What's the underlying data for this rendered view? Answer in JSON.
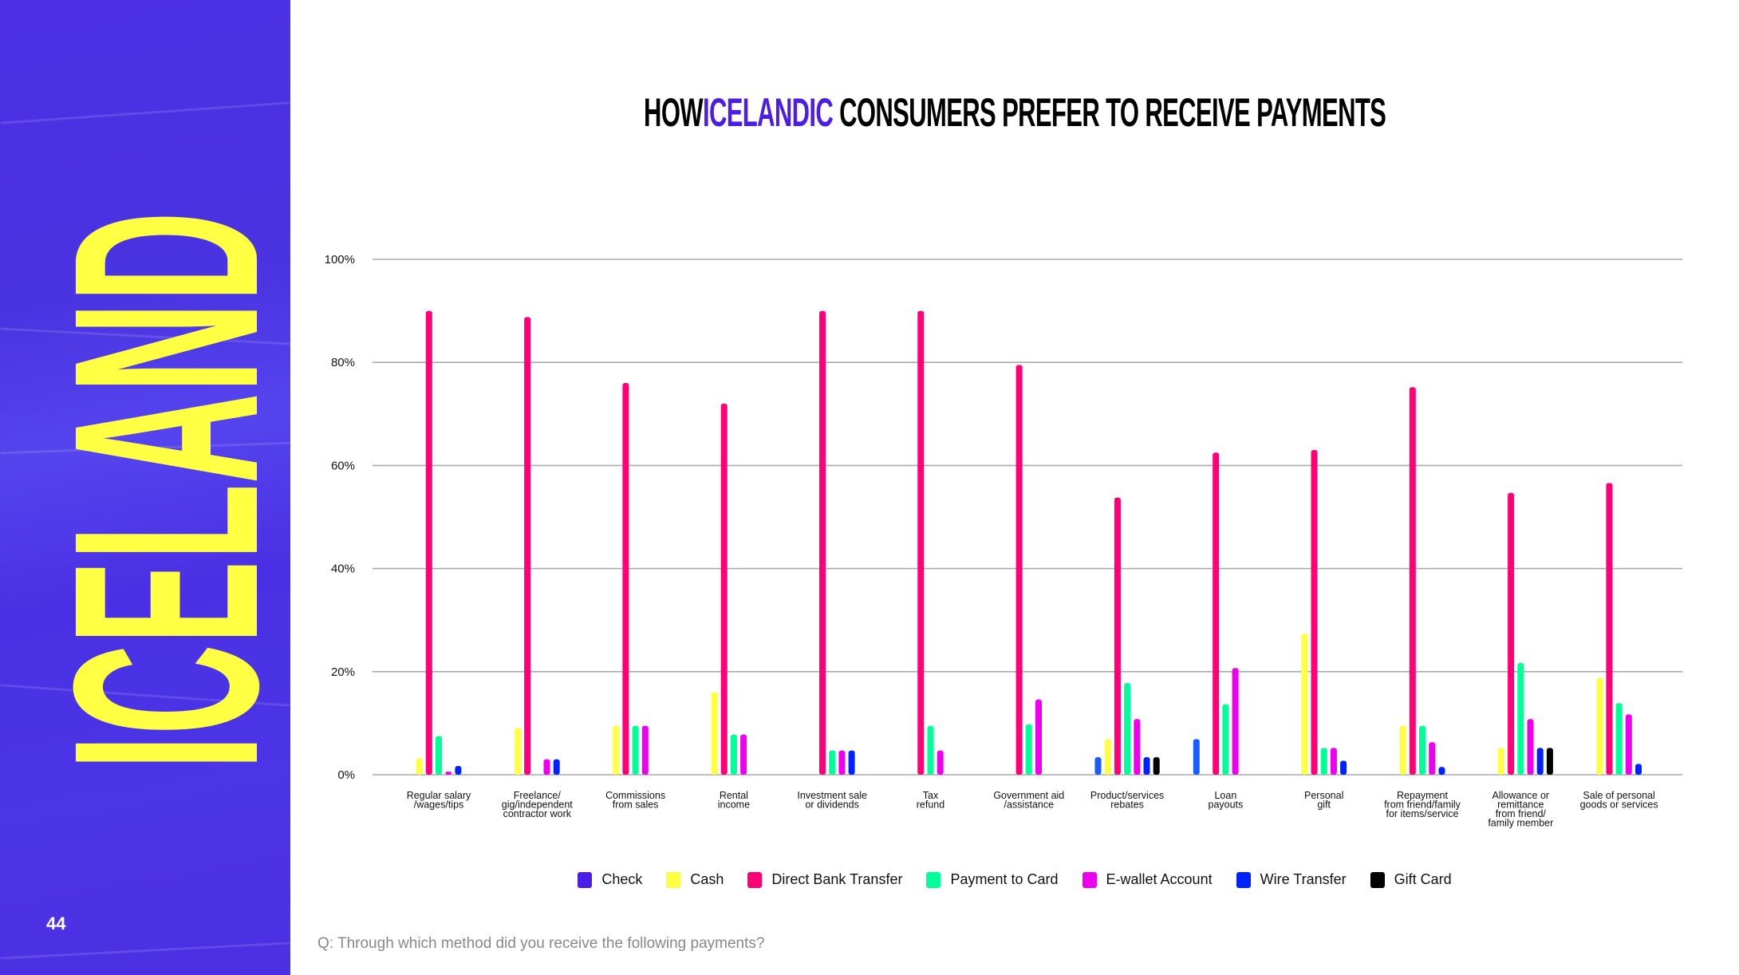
{
  "sidebar": {
    "country": "ICELAND",
    "page_number": "44"
  },
  "title": {
    "prefix": "HOW ",
    "highlight": "ICELANDIC",
    "suffix": " CONSUMERS PREFER TO RECEIVE PAYMENTS"
  },
  "footer": {
    "question": "Q: Through which method did you receive the following payments?"
  },
  "colors": {
    "sidebar_bg": "#4a30e4",
    "country_text": "#ffff44",
    "accent": "#4a1ee6"
  },
  "chart_data": {
    "type": "bar",
    "title": "HOW ICELANDIC CONSUMERS PREFER TO RECEIVE PAYMENTS",
    "xlabel": "",
    "ylabel": "",
    "ylim": [
      0,
      100
    ],
    "yticks": [
      "0%",
      "20%",
      "40%",
      "60%",
      "80%",
      "100%"
    ],
    "grid": true,
    "legend_position": "bottom",
    "categories": [
      [
        "Regular salary",
        "/wages/tips"
      ],
      [
        "Freelance/",
        "gig/independent",
        "contractor work"
      ],
      [
        "Commissions",
        "from sales"
      ],
      [
        "Rental",
        "income"
      ],
      [
        "Investment sale",
        "or dividends"
      ],
      [
        "Tax",
        "refund"
      ],
      [
        "Government aid",
        "/assistance"
      ],
      [
        "Product/services",
        "rebates"
      ],
      [
        "Loan",
        "payouts"
      ],
      [
        "Personal",
        "gift"
      ],
      [
        "Repayment",
        "from friend/family",
        "for items/service"
      ],
      [
        "Allowance or",
        "remittance",
        "from friend/",
        "family member"
      ],
      [
        "Sale of personal",
        "goods or services"
      ]
    ],
    "series": [
      {
        "name": "Check",
        "color": "#4a1ee6",
        "bar_color": "#1a5cff",
        "values": [
          0,
          0,
          0,
          0,
          0,
          0,
          0,
          3.4,
          6.9,
          0,
          0,
          0,
          0
        ]
      },
      {
        "name": "Cash",
        "color": "#ffff44",
        "values": [
          3.2,
          9.1,
          9.5,
          16,
          0,
          0,
          0,
          6.9,
          0,
          27.4,
          9.5,
          5.2,
          18.8
        ]
      },
      {
        "name": "Direct Bank Transfer",
        "color": "#ff0077",
        "values": [
          90,
          88.8,
          76,
          72,
          90,
          90,
          79.5,
          53.8,
          62.5,
          63,
          75.2,
          54.7,
          56.6
        ]
      },
      {
        "name": "Payment to Card",
        "color": "#00ff99",
        "values": [
          7.5,
          0,
          9.5,
          7.8,
          4.7,
          9.5,
          9.8,
          17.8,
          13.7,
          5.2,
          9.5,
          21.7,
          13.9
        ]
      },
      {
        "name": "E-wallet Account",
        "color": "#ee00ee",
        "values": [
          0.6,
          3,
          9.5,
          7.8,
          4.7,
          4.7,
          14.6,
          10.8,
          20.7,
          5.2,
          6.3,
          10.8,
          11.7
        ]
      },
      {
        "name": "Wire Transfer",
        "color": "#0022ff",
        "values": [
          1.7,
          3,
          0,
          0,
          4.7,
          0,
          0,
          3.4,
          0,
          2.7,
          1.5,
          5.2,
          2.1
        ]
      },
      {
        "name": "Gift Card",
        "color": "#000000",
        "values": [
          0,
          0,
          0,
          0,
          0,
          0,
          0,
          3.4,
          0,
          0,
          0,
          5.2,
          0
        ]
      }
    ]
  }
}
